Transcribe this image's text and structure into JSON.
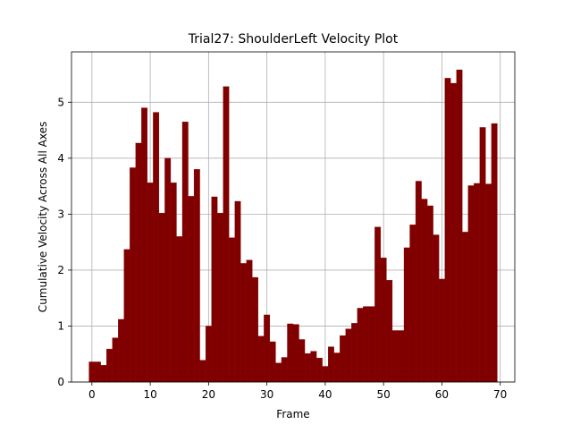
{
  "chart_data": {
    "type": "bar",
    "title": "Trial27: ShoulderLeft Velocity Plot",
    "xlabel": "Frame",
    "ylabel": "Cumulative Velocity Across All Axes",
    "xlim": [
      -3.5,
      72.5
    ],
    "ylim": [
      0,
      5.9
    ],
    "xticks": [
      0,
      10,
      20,
      30,
      40,
      50,
      60,
      70
    ],
    "yticks": [
      0,
      1,
      2,
      3,
      4,
      5
    ],
    "grid": true,
    "bar_color": "#800000",
    "x": [
      0,
      1,
      2,
      3,
      4,
      5,
      6,
      7,
      8,
      9,
      10,
      11,
      12,
      13,
      14,
      15,
      16,
      17,
      18,
      19,
      20,
      21,
      22,
      23,
      24,
      25,
      26,
      27,
      28,
      29,
      30,
      31,
      32,
      33,
      34,
      35,
      36,
      37,
      38,
      39,
      40,
      41,
      42,
      43,
      44,
      45,
      46,
      47,
      48,
      49,
      50,
      51,
      52,
      53,
      54,
      55,
      56,
      57,
      58,
      59,
      60,
      61,
      62,
      63,
      64,
      65,
      66,
      67,
      68,
      69
    ],
    "values": [
      0.36,
      0.36,
      0.3,
      0.59,
      0.79,
      1.12,
      2.37,
      3.83,
      4.27,
      4.9,
      3.56,
      4.82,
      3.02,
      4.0,
      3.56,
      2.6,
      4.65,
      3.32,
      3.8,
      0.39,
      1.0,
      3.31,
      3.02,
      5.28,
      2.58,
      3.23,
      2.12,
      2.18,
      1.87,
      0.82,
      1.2,
      0.72,
      0.34,
      0.44,
      1.04,
      1.03,
      0.76,
      0.51,
      0.55,
      0.43,
      0.28,
      0.63,
      0.52,
      0.83,
      0.95,
      1.05,
      1.32,
      1.35,
      1.35,
      2.77,
      2.22,
      1.82,
      0.92,
      0.92,
      2.4,
      2.81,
      3.59,
      3.27,
      3.15,
      2.63,
      1.84,
      5.43,
      5.34,
      5.58,
      2.68,
      3.51,
      3.55,
      4.55,
      3.54,
      4.62
    ]
  }
}
